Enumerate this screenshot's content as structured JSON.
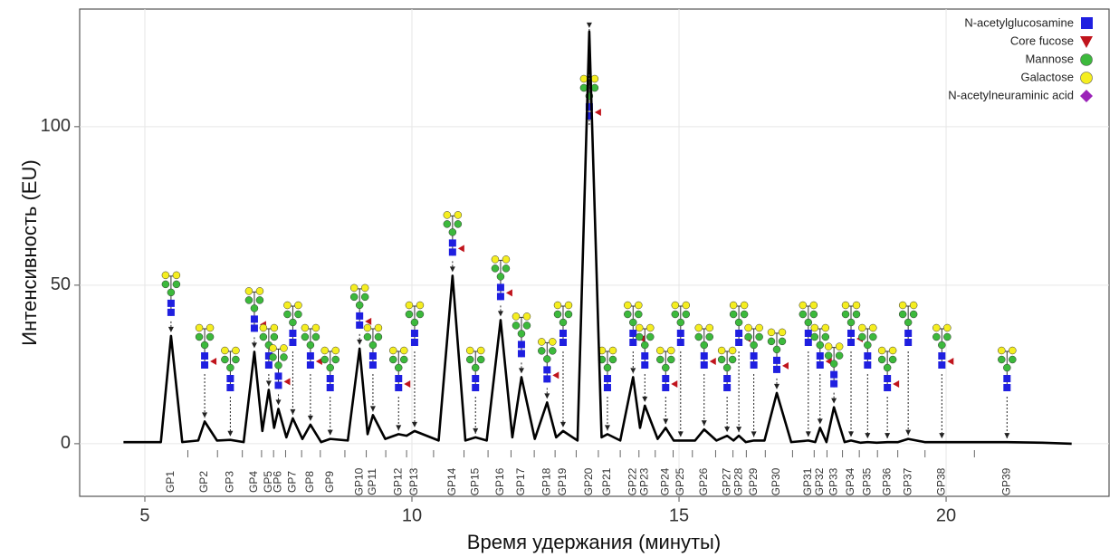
{
  "chart_data": {
    "type": "line",
    "x_label": "Время удержания (минуты)",
    "y_label": "Интенсивность (EU)",
    "xlim": [
      3.78,
      23.05
    ],
    "ylim": [
      -16.6,
      137.1
    ],
    "xticks": [
      5,
      10,
      15,
      20
    ],
    "yticks": [
      0,
      50,
      100
    ],
    "grid": true,
    "series": [
      {
        "color": "#000000",
        "x": [
          4.6,
          5.3,
          5.49,
          5.7,
          6.0,
          6.12,
          6.35,
          6.6,
          6.85,
          7.05,
          7.2,
          7.32,
          7.42,
          7.5,
          7.65,
          7.77,
          7.95,
          8.1,
          8.3,
          8.47,
          8.8,
          9.02,
          9.17,
          9.27,
          9.5,
          9.75,
          9.9,
          10.05,
          10.5,
          10.76,
          11.0,
          11.19,
          11.4,
          11.66,
          11.88,
          12.05,
          12.3,
          12.53,
          12.7,
          12.83,
          13.1,
          13.32,
          13.55,
          13.66,
          13.9,
          14.14,
          14.27,
          14.36,
          14.6,
          14.75,
          14.9,
          15.03,
          15.3,
          15.47,
          15.7,
          15.9,
          16.02,
          16.12,
          16.25,
          16.4,
          16.6,
          16.83,
          17.1,
          17.42,
          17.55,
          17.64,
          17.76,
          17.9,
          18.1,
          18.22,
          18.4,
          18.53,
          18.7,
          18.9,
          19.1,
          19.29,
          19.6,
          19.92,
          20.5,
          21.14,
          21.8,
          22.35
        ],
        "values": [
          0.5,
          0.5,
          34,
          0.5,
          1,
          7,
          1,
          1.2,
          0.5,
          29,
          4,
          17,
          5,
          11,
          2,
          8,
          1.5,
          6,
          0.5,
          1.5,
          1,
          30,
          3,
          9,
          1.5,
          3,
          2.5,
          4,
          1,
          53,
          1,
          2,
          1,
          39,
          2,
          21,
          1.5,
          13,
          2,
          4,
          1,
          130,
          2,
          3,
          1,
          21,
          5,
          12,
          1.5,
          5,
          1,
          1,
          1,
          4.5,
          1,
          2.5,
          1,
          2.5,
          0.5,
          1,
          1,
          16,
          0.5,
          1,
          0.5,
          5,
          0.5,
          11.5,
          0.5,
          1,
          0.3,
          0.5,
          0.3,
          0.5,
          0.5,
          1.5,
          0.5,
          0.5,
          0.5,
          0.5,
          0.3,
          0
        ]
      }
    ],
    "peak_labels": [
      {
        "label": "GP1",
        "x": 5.49
      },
      {
        "label": "GP2",
        "x": 6.12
      },
      {
        "label": "GP3",
        "x": 6.6
      },
      {
        "label": "GP4",
        "x": 7.05
      },
      {
        "label": "GP5",
        "x": 7.32
      },
      {
        "label": "GP6",
        "x": 7.5
      },
      {
        "label": "GP7",
        "x": 7.77
      },
      {
        "label": "GP8",
        "x": 8.1
      },
      {
        "label": "GP9",
        "x": 8.47
      },
      {
        "label": "GP10",
        "x": 9.02
      },
      {
        "label": "GP11",
        "x": 9.27
      },
      {
        "label": "GP12",
        "x": 9.75
      },
      {
        "label": "GP13",
        "x": 10.05
      },
      {
        "label": "GP14",
        "x": 10.76
      },
      {
        "label": "GP15",
        "x": 11.19
      },
      {
        "label": "GP16",
        "x": 11.66
      },
      {
        "label": "GP17",
        "x": 12.05
      },
      {
        "label": "GP18",
        "x": 12.53
      },
      {
        "label": "GP19",
        "x": 12.83
      },
      {
        "label": "GP20",
        "x": 13.32
      },
      {
        "label": "GP21",
        "x": 13.66
      },
      {
        "label": "GP22",
        "x": 14.14
      },
      {
        "label": "GP23",
        "x": 14.36
      },
      {
        "label": "GP24",
        "x": 14.75
      },
      {
        "label": "GP25",
        "x": 15.03
      },
      {
        "label": "GP26",
        "x": 15.47
      },
      {
        "label": "GP27",
        "x": 15.9
      },
      {
        "label": "GP28",
        "x": 16.12
      },
      {
        "label": "GP29",
        "x": 16.4
      },
      {
        "label": "GP30",
        "x": 16.83
      },
      {
        "label": "GP31",
        "x": 17.42
      },
      {
        "label": "GP32",
        "x": 17.64
      },
      {
        "label": "GP33",
        "x": 17.9
      },
      {
        "label": "GP34",
        "x": 18.22
      },
      {
        "label": "GP35",
        "x": 18.53
      },
      {
        "label": "GP36",
        "x": 18.9
      },
      {
        "label": "GP37",
        "x": 19.29
      },
      {
        "label": "GP38",
        "x": 19.92
      },
      {
        "label": "GP39",
        "x": 21.14
      }
    ],
    "legend": [
      {
        "label": "N-acetylglucosamine",
        "color": "#1f1fe0",
        "shape": "square"
      },
      {
        "label": "Core fucose",
        "color": "#c0141c",
        "shape": "triangle"
      },
      {
        "label": "Mannose",
        "color": "#3cb93c",
        "shape": "circle"
      },
      {
        "label": "Galactose",
        "color": "#f5ee20",
        "shape": "circle"
      },
      {
        "label": "N-acetylneuraminic acid",
        "color": "#9b22b8",
        "shape": "diamond"
      }
    ]
  }
}
